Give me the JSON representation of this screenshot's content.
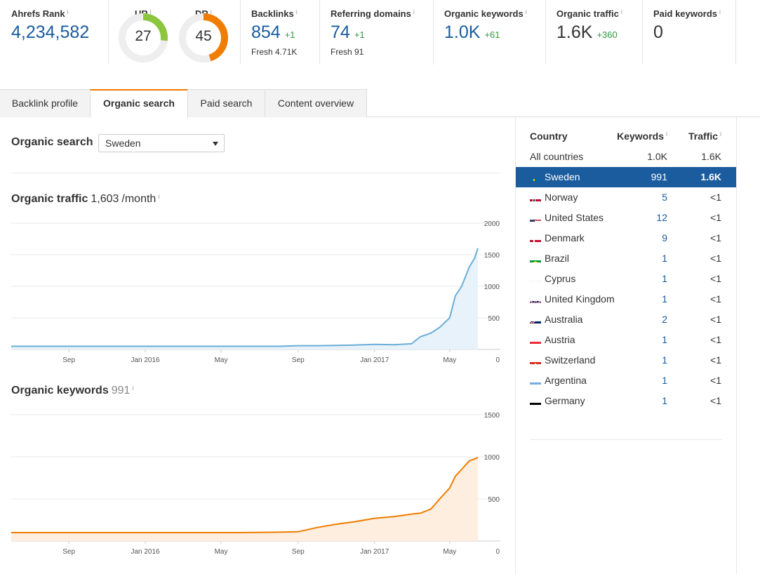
{
  "metrics": {
    "ahrefs_rank": {
      "label": "Ahrefs Rank",
      "info": "i",
      "value": "4,234,582"
    },
    "ur": {
      "label": "UR",
      "info": "i",
      "value": "27",
      "score": 27
    },
    "dr": {
      "label": "DR",
      "info": "i",
      "value": "45",
      "score": 45
    },
    "backlinks": {
      "label": "Backlinks",
      "info": "i",
      "value": "854",
      "delta": "+1",
      "sub": "Fresh 4.71K"
    },
    "referring_domains": {
      "label": "Referring domains",
      "info": "i",
      "value": "74",
      "delta": "+1",
      "sub": "Fresh 91"
    },
    "organic_keywords": {
      "label": "Organic keywords",
      "info": "i",
      "value": "1.0K",
      "delta": "+61"
    },
    "organic_traffic": {
      "label": "Organic traffic",
      "info": "i",
      "value": "1.6K",
      "delta": "+360"
    },
    "paid_keywords": {
      "label": "Paid keywords",
      "info": "i",
      "value": "0"
    }
  },
  "tabs": [
    {
      "label": "Backlink profile",
      "active": false
    },
    {
      "label": "Organic search",
      "active": true
    },
    {
      "label": "Paid search",
      "active": false
    },
    {
      "label": "Content overview",
      "active": false
    }
  ],
  "organic_search": {
    "title": "Organic search",
    "country_select": "Sweden"
  },
  "traffic_section": {
    "title": "Organic traffic",
    "value": "1,603",
    "unit": "/month",
    "info": "i"
  },
  "keywords_section": {
    "title": "Organic keywords",
    "value": "991",
    "info": "i"
  },
  "colors": {
    "accent_blue": "#1a5c9e",
    "traffic_line": "#6baed6",
    "traffic_fill": "#e8f2fb",
    "keywords_line": "#f07c00",
    "keywords_fill": "#fdeee0",
    "delta_green": "#2e9a3f",
    "ur_gauge": "#8cc63f",
    "dr_gauge": "#f07c00"
  },
  "chart_data": [
    {
      "type": "area",
      "title": "Organic traffic",
      "x_ticks": [
        "Sep",
        "Jan 2016",
        "May",
        "Sep",
        "Jan 2017",
        "May"
      ],
      "y_ticks": [
        0,
        500,
        1000,
        1500,
        2000
      ],
      "ylim": [
        0,
        2000
      ],
      "x": [
        "2015-06",
        "2015-08",
        "2015-10",
        "2015-12",
        "2016-02",
        "2016-04",
        "2016-06",
        "2016-08",
        "2016-09",
        "2016-10",
        "2016-11",
        "2016-12",
        "2017-01",
        "2017-02",
        "2017-03",
        "2017-03-15",
        "2017-04",
        "2017-04-15",
        "2017-05",
        "2017-05-10",
        "2017-05-20",
        "2017-06-01",
        "2017-06-10",
        "2017-06-15"
      ],
      "values": [
        50,
        50,
        50,
        50,
        50,
        50,
        50,
        50,
        60,
        60,
        65,
        70,
        80,
        75,
        90,
        200,
        260,
        350,
        500,
        850,
        1000,
        1300,
        1450,
        1603
      ],
      "grid": true
    },
    {
      "type": "area",
      "title": "Organic keywords",
      "x_ticks": [
        "Sep",
        "Jan 2016",
        "May",
        "Sep",
        "Jan 2017",
        "May"
      ],
      "y_ticks": [
        0,
        500,
        1000,
        1500
      ],
      "ylim": [
        0,
        1500
      ],
      "x": [
        "2015-06",
        "2015-08",
        "2015-10",
        "2015-12",
        "2016-02",
        "2016-04",
        "2016-06",
        "2016-08",
        "2016-09",
        "2016-10",
        "2016-11",
        "2016-12",
        "2017-01",
        "2017-02",
        "2017-03",
        "2017-03-15",
        "2017-04",
        "2017-04-15",
        "2017-05",
        "2017-05-10",
        "2017-05-20",
        "2017-06-01",
        "2017-06-15"
      ],
      "values": [
        100,
        100,
        100,
        100,
        100,
        100,
        100,
        105,
        110,
        160,
        200,
        230,
        270,
        290,
        320,
        330,
        380,
        500,
        630,
        770,
        850,
        950,
        991
      ],
      "grid": true
    }
  ],
  "country_table": {
    "headers": {
      "country": "Country",
      "keywords": "Keywords",
      "traffic": "Traffic",
      "info": "i"
    },
    "all_row": {
      "name": "All countries",
      "keywords": "1.0K",
      "traffic": "1.6K"
    },
    "rows": [
      {
        "name": "Sweden",
        "flag": "se-flag-icon",
        "keywords": "991",
        "traffic": "1.6K",
        "selected": true
      },
      {
        "name": "Norway",
        "flag": "no-flag-icon",
        "keywords": "5",
        "traffic": "<1"
      },
      {
        "name": "United States",
        "flag": "us-flag-icon",
        "keywords": "12",
        "traffic": "<1"
      },
      {
        "name": "Denmark",
        "flag": "dk-flag-icon",
        "keywords": "9",
        "traffic": "<1"
      },
      {
        "name": "Brazil",
        "flag": "br-flag-icon",
        "keywords": "1",
        "traffic": "<1"
      },
      {
        "name": "Cyprus",
        "flag": "cy-flag-icon",
        "keywords": "1",
        "traffic": "<1"
      },
      {
        "name": "United Kingdom",
        "flag": "gb-flag-icon",
        "keywords": "1",
        "traffic": "<1"
      },
      {
        "name": "Australia",
        "flag": "au-flag-icon",
        "keywords": "2",
        "traffic": "<1"
      },
      {
        "name": "Austria",
        "flag": "at-flag-icon",
        "keywords": "1",
        "traffic": "<1"
      },
      {
        "name": "Switzerland",
        "flag": "ch-flag-icon",
        "keywords": "1",
        "traffic": "<1"
      },
      {
        "name": "Argentina",
        "flag": "ar-flag-icon",
        "keywords": "1",
        "traffic": "<1"
      },
      {
        "name": "Germany",
        "flag": "de-flag-icon",
        "keywords": "1",
        "traffic": "<1"
      }
    ]
  }
}
